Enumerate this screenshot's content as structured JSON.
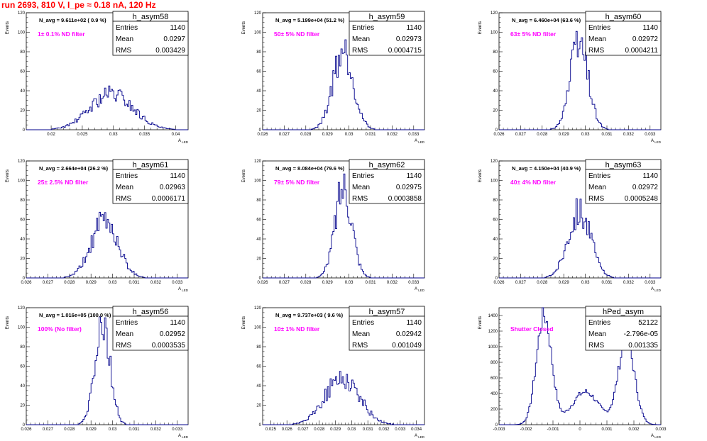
{
  "page_title": "run 2693,   810 V, I_pe ≈ 0.18 nA, 120 Hz",
  "colors": {
    "histogram": "#00008b",
    "annotation": "#ff00ff",
    "title": "#ff0000"
  },
  "chart_data": [
    {
      "id": "h_asym58",
      "type": "histogram",
      "title": "h_asym58",
      "xlabel": "A_{LED}",
      "ylabel": "Events",
      "navg": "N_avg = 9.611e+02 ( 0.9 %)",
      "filter": "1± 0.1% ND filter",
      "stats": {
        "entries": "1140",
        "mean": "0.0297",
        "rms": "0.003429"
      },
      "xlim": [
        0.016,
        0.042
      ],
      "ylim": [
        0,
        120
      ],
      "xticks": [
        0.02,
        0.025,
        0.03,
        0.035,
        0.04
      ],
      "xticklabels": [
        "0.02",
        "0.025",
        "0.03",
        "0.035",
        "0.04"
      ],
      "yticks": [
        0,
        20,
        40,
        60,
        80,
        100,
        120
      ],
      "mu": 0.0297,
      "sigma": 0.00343,
      "peak": 37,
      "seed": 58
    },
    {
      "id": "h_asym59",
      "type": "histogram",
      "title": "h_asym59",
      "xlabel": "A_{LED}",
      "ylabel": "Events",
      "navg": "N_avg = 5.199e+04 (51.2 %)",
      "filter": "50± 5% ND filter",
      "stats": {
        "entries": "1140",
        "mean": "0.02973",
        "rms": "0.0004715"
      },
      "xlim": [
        0.026,
        0.0335
      ],
      "ylim": [
        0,
        120
      ],
      "xticks": [
        0.026,
        0.027,
        0.028,
        0.029,
        0.03,
        0.031,
        0.032,
        0.033
      ],
      "xticklabels": [
        "0.026",
        "0.027",
        "0.028",
        "0.029",
        "0.03",
        "0.031",
        "0.032",
        "0.033"
      ],
      "yticks": [
        0,
        20,
        40,
        60,
        80,
        100,
        120
      ],
      "mu": 0.02973,
      "sigma": 0.00047,
      "peak": 82,
      "seed": 59
    },
    {
      "id": "h_asym60",
      "type": "histogram",
      "title": "h_asym60",
      "xlabel": "A_{LED}",
      "ylabel": "Events",
      "navg": "N_avg = 6.460e+04 (63.6 %)",
      "filter": "63± 5% ND filter",
      "stats": {
        "entries": "1140",
        "mean": "0.02972",
        "rms": "0.0004211"
      },
      "xlim": [
        0.026,
        0.0335
      ],
      "ylim": [
        0,
        120
      ],
      "xticks": [
        0.026,
        0.027,
        0.028,
        0.029,
        0.03,
        0.031,
        0.032,
        0.033
      ],
      "xticklabels": [
        "0.026",
        "0.027",
        "0.028",
        "0.029",
        "0.03",
        "0.031",
        "0.032",
        "0.033"
      ],
      "yticks": [
        0,
        20,
        40,
        60,
        80,
        100,
        120
      ],
      "mu": 0.02972,
      "sigma": 0.00042,
      "peak": 90,
      "seed": 60
    },
    {
      "id": "h_asym61",
      "type": "histogram",
      "title": "h_asym61",
      "xlabel": "A_{LED}",
      "ylabel": "Events",
      "navg": "N_avg = 2.664e+04 (26.2 %)",
      "filter": "25± 2.5% ND filter",
      "stats": {
        "entries": "1140",
        "mean": "0.02963",
        "rms": "0.0006171"
      },
      "xlim": [
        0.026,
        0.0335
      ],
      "ylim": [
        0,
        120
      ],
      "xticks": [
        0.026,
        0.027,
        0.028,
        0.029,
        0.03,
        0.031,
        0.032,
        0.033
      ],
      "xticklabels": [
        "0.026",
        "0.027",
        "0.028",
        "0.029",
        "0.03",
        "0.031",
        "0.032",
        "0.033"
      ],
      "yticks": [
        0,
        20,
        40,
        60,
        80,
        100,
        120
      ],
      "mu": 0.02963,
      "sigma": 0.00062,
      "peak": 58,
      "seed": 61
    },
    {
      "id": "h_asym62",
      "type": "histogram",
      "title": "h_asym62",
      "xlabel": "A_{LED}",
      "ylabel": "Events",
      "navg": "N_avg = 8.084e+04 (79.6 %)",
      "filter": "79± 5% ND filter",
      "stats": {
        "entries": "1140",
        "mean": "0.02975",
        "rms": "0.0003858"
      },
      "xlim": [
        0.026,
        0.0335
      ],
      "ylim": [
        0,
        120
      ],
      "xticks": [
        0.026,
        0.027,
        0.028,
        0.029,
        0.03,
        0.031,
        0.032,
        0.033
      ],
      "xticklabels": [
        "0.026",
        "0.027",
        "0.028",
        "0.029",
        "0.03",
        "0.031",
        "0.032",
        "0.033"
      ],
      "yticks": [
        0,
        20,
        40,
        60,
        80,
        100,
        120
      ],
      "mu": 0.02975,
      "sigma": 0.00039,
      "peak": 96,
      "seed": 62
    },
    {
      "id": "h_asym63",
      "type": "histogram",
      "title": "h_asym63",
      "xlabel": "A_{LED}",
      "ylabel": "Events",
      "navg": "N_avg = 4.150e+04 (40.9 %)",
      "filter": "40± 4% ND filter",
      "stats": {
        "entries": "1140",
        "mean": "0.02972",
        "rms": "0.0005248"
      },
      "xlim": [
        0.026,
        0.0335
      ],
      "ylim": [
        0,
        120
      ],
      "xticks": [
        0.026,
        0.027,
        0.028,
        0.029,
        0.03,
        0.031,
        0.032,
        0.033
      ],
      "xticklabels": [
        "0.026",
        "0.027",
        "0.028",
        "0.029",
        "0.03",
        "0.031",
        "0.032",
        "0.033"
      ],
      "yticks": [
        0,
        20,
        40,
        60,
        80,
        100,
        120
      ],
      "mu": 0.02972,
      "sigma": 0.00052,
      "peak": 70,
      "seed": 63
    },
    {
      "id": "h_asym56",
      "type": "histogram",
      "title": "h_asym56",
      "xlabel": "A_{LED}",
      "ylabel": "Events",
      "navg": "N_avg = 1.016e+05 (100.0 %)",
      "filter": "100% (No filter)",
      "stats": {
        "entries": "1140",
        "mean": "0.02952",
        "rms": "0.0003535"
      },
      "xlim": [
        0.026,
        0.0335
      ],
      "ylim": [
        0,
        120
      ],
      "xticks": [
        0.026,
        0.027,
        0.028,
        0.029,
        0.03,
        0.031,
        0.032,
        0.033
      ],
      "xticklabels": [
        "0.026",
        "0.027",
        "0.028",
        "0.029",
        "0.03",
        "0.031",
        "0.032",
        "0.033"
      ],
      "yticks": [
        0,
        20,
        40,
        60,
        80,
        100,
        120
      ],
      "mu": 0.02952,
      "sigma": 0.00035,
      "peak": 110,
      "seed": 56
    },
    {
      "id": "h_asym57",
      "type": "histogram",
      "title": "h_asym57",
      "xlabel": "A_{LED}",
      "ylabel": "Events",
      "navg": "N_avg = 9.737e+03 ( 9.6 %)",
      "filter": "10± 1% ND filter",
      "stats": {
        "entries": "1140",
        "mean": "0.02942",
        "rms": "0.001049"
      },
      "xlim": [
        0.0245,
        0.0345
      ],
      "ylim": [
        0,
        120
      ],
      "xticks": [
        0.025,
        0.026,
        0.027,
        0.028,
        0.029,
        0.03,
        0.031,
        0.032,
        0.033,
        0.034
      ],
      "xticklabels": [
        "0.025",
        "0.026",
        "0.027",
        "0.028",
        "0.029",
        "0.03",
        "0.031",
        "0.032",
        "0.033",
        "0.034"
      ],
      "yticks": [
        0,
        20,
        40,
        60,
        80,
        100,
        120
      ],
      "mu": 0.02942,
      "sigma": 0.00105,
      "peak": 48,
      "seed": 57
    },
    {
      "id": "hPed_asym",
      "type": "histogram",
      "title": "hPed_asym",
      "xlabel": "A_{LED}",
      "ylabel": "Events",
      "navg": "",
      "filter": "Shutter Closed",
      "stats": {
        "entries": "52122",
        "mean": "-2.796e-05",
        "rms": "0.001335"
      },
      "xlim": [
        -0.003,
        0.003
      ],
      "ylim": [
        0,
        1500
      ],
      "xticks": [
        -0.003,
        -0.002,
        -0.001,
        0,
        0.001,
        0.002,
        0.003
      ],
      "xticklabels": [
        "-0.003",
        "-0.002",
        "-0.001",
        "0",
        "0.001",
        "0.002",
        "0.003"
      ],
      "yticks": [
        0,
        200,
        400,
        600,
        800,
        1000,
        1200,
        1400
      ],
      "ped": [
        {
          "mu": -0.00133,
          "sigma": 0.00028,
          "peak": 1400
        },
        {
          "mu": 0.0002,
          "sigma": 0.0005,
          "peak": 420
        },
        {
          "mu": 0.00172,
          "sigma": 0.0003,
          "peak": 1080
        }
      ],
      "seed": 7
    }
  ]
}
